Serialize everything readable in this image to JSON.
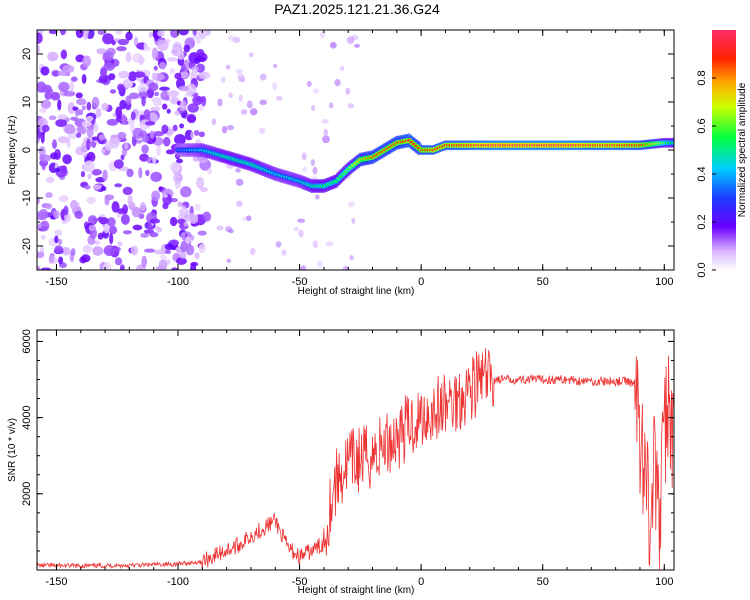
{
  "title": "PAZ1.2025.121.21.36.G24",
  "chart_data": [
    {
      "type": "heatmap",
      "title": "PAZ1.2025.121.21.36.G24",
      "xlabel": "Height of straight line (km)",
      "ylabel": "Frequency (Hz)",
      "xlim": [
        -158,
        104
      ],
      "ylim": [
        -25,
        25
      ],
      "xticks": [
        -150,
        -100,
        -50,
        0,
        50,
        100
      ],
      "yticks": [
        -20,
        -10,
        0,
        10,
        20
      ],
      "colorbar": {
        "label": "Normalized spectral amplitude",
        "range": [
          0,
          1
        ],
        "ticks": [
          "0.0",
          "0.2",
          "0.4",
          "0.6",
          "0.8"
        ],
        "colormap": "rainbow (white-purple-blue-cyan-green-yellow-red-magenta)"
      },
      "ridge": {
        "x": [
          -100,
          -90,
          -80,
          -70,
          -60,
          -50,
          -45,
          -40,
          -35,
          -30,
          -25,
          -20,
          -15,
          -10,
          -5,
          0,
          5,
          10,
          20,
          30,
          40,
          50,
          60,
          70,
          80,
          90,
          100,
          104
        ],
        "y": [
          0,
          0,
          -1.5,
          -3,
          -5,
          -6.5,
          -7.5,
          -7.5,
          -6.5,
          -4,
          -2,
          -1.5,
          0,
          1.5,
          2,
          0,
          0,
          1,
          1,
          1,
          1,
          1,
          1,
          1,
          1,
          1,
          1.5,
          1.5
        ],
        "amplitude": [
          0.35,
          0.45,
          0.5,
          0.5,
          0.45,
          0.45,
          0.5,
          0.55,
          0.55,
          0.6,
          0.75,
          0.85,
          0.85,
          0.85,
          0.9,
          0.85,
          0.9,
          0.9,
          0.95,
          1,
          1,
          1,
          1,
          0.95,
          0.95,
          0.9,
          0.6,
          0.5
        ]
      }
    },
    {
      "type": "line",
      "xlabel": "Height of straight line (km)",
      "ylabel": "SNR (10 * v/v)",
      "xlim": [
        -158,
        104
      ],
      "ylim": [
        0,
        6300
      ],
      "xticks": [
        -150,
        -100,
        -50,
        0,
        50,
        100
      ],
      "yticks": [
        2000,
        4000,
        6000
      ],
      "color": "#ee3333",
      "x": [
        -158,
        -140,
        -120,
        -100,
        -90,
        -85,
        -80,
        -75,
        -70,
        -65,
        -60,
        -55,
        -50,
        -45,
        -40,
        -37,
        -35,
        -32,
        -30,
        -25,
        -20,
        -15,
        -10,
        -5,
        0,
        5,
        10,
        15,
        20,
        25,
        30,
        40,
        50,
        60,
        70,
        80,
        85,
        88,
        90,
        92,
        94,
        96,
        98,
        100,
        102,
        104
      ],
      "y": [
        120,
        110,
        120,
        160,
        220,
        380,
        520,
        650,
        900,
        1100,
        1300,
        600,
        350,
        500,
        700,
        1900,
        2300,
        2600,
        2800,
        2900,
        3000,
        3300,
        3500,
        3800,
        4000,
        4200,
        4300,
        4500,
        4800,
        5000,
        5000,
        5000,
        5000,
        5000,
        4950,
        4950,
        4950,
        4900,
        3500,
        2800,
        1500,
        2700,
        1200,
        3600,
        4500,
        3200
      ]
    }
  ]
}
